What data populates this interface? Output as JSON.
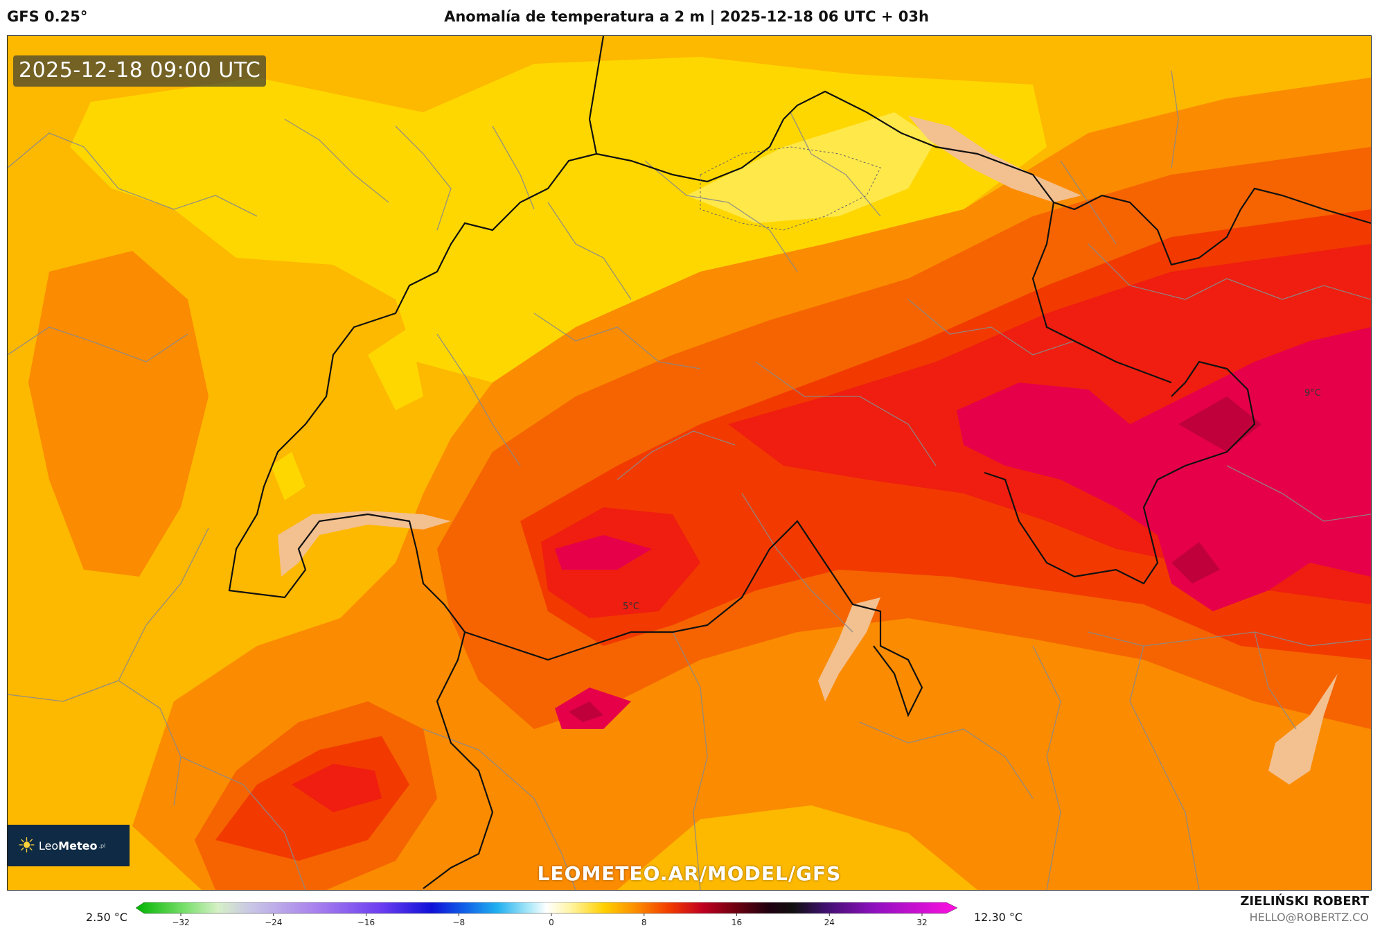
{
  "header": {
    "model": "GFS 0.25°",
    "title": "Anomalía de temperatura a 2 m | 2025-12-18 06 UTC + 03h"
  },
  "map": {
    "timestamp": "2025-12-18 09:00 UTC",
    "watermark": "LEOMETEO.AR/MODEL/GFS",
    "labels": [
      "5°C",
      "9°C"
    ],
    "logo": {
      "brand_light": "Leo",
      "brand_bold": "Meteo",
      "suffix": ".pl"
    },
    "colors": {
      "yellow": "#ffd700",
      "light_yellow": "#ffe84a",
      "amber": "#fdb800",
      "orange": "#fb8b00",
      "deep_orange": "#f56400",
      "red_orange": "#f23a00",
      "red": "#ef1e10",
      "crimson": "#e6004a",
      "dark_crimson": "#c0003a",
      "lake": "#f3c090",
      "border": "#111111",
      "region_line": "#8a8a8a"
    }
  },
  "legend": {
    "min_label": "2.50 °C",
    "max_label": "12.30 °C",
    "ticks": [
      "−32",
      "−24",
      "−16",
      "−8",
      "0",
      "8",
      "16",
      "24",
      "32"
    ]
  },
  "credits": {
    "author": "ZIELIŃSKI ROBERT",
    "email": "HELLO@ROBERTZ.CO"
  }
}
